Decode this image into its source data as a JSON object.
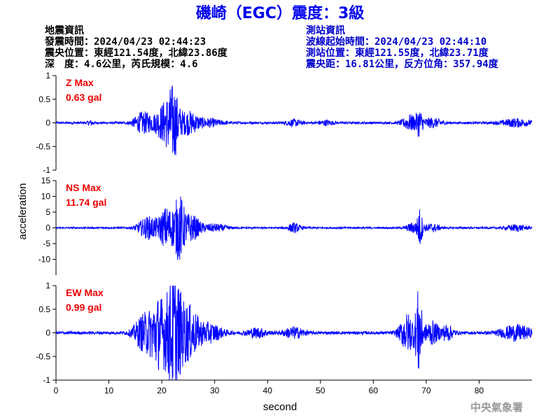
{
  "header": {
    "title": "磯崎（EGC）震度：3級"
  },
  "quake_info": {
    "heading": "地震資訊",
    "time": "發震時間：2024/04/23 02:44:23",
    "epicenter": "震央位置：東經121.54度，北緯23.86度",
    "depth_magnitude": "深　度：4.6公里，芮氏規模：4.6"
  },
  "station_info": {
    "heading": "測站資訊",
    "wave_start": "波線起始時間：2024/04/23 02:44:10",
    "location": "測站位置：東經121.55度，北緯23.71度",
    "distance": "震央距：16.81公里，反方位角：357.94度"
  },
  "footer": {
    "credit": "中央氣象署"
  },
  "chart_data": {
    "type": "line",
    "xlabel": "second",
    "ylabel": "acceleration",
    "xlim": [
      0,
      90
    ],
    "x_ticks": [
      "0",
      "10",
      "20",
      "30",
      "40",
      "50",
      "60",
      "70",
      "80"
    ],
    "grid": false,
    "trace_color": "#0000ff",
    "label_color": "#ee0000",
    "panels": [
      {
        "component": "Z",
        "max_label": "Z Max",
        "max_value": "0.63 gal",
        "ylim": [
          -1,
          1
        ],
        "y_ticks": [
          "1",
          "0.5",
          "0",
          "-0.5",
          "-1"
        ],
        "noise": 0.015,
        "bursts": [
          {
            "t": 6.5,
            "amp": 0.03,
            "width": 0.6
          },
          {
            "t": 16.5,
            "amp": 0.14,
            "width": 1.8
          },
          {
            "t": 20.5,
            "amp": 0.25,
            "width": 1.8
          },
          {
            "t": 22.2,
            "amp": 0.38,
            "width": 1.1
          },
          {
            "t": 25.0,
            "amp": 0.15,
            "width": 2.0
          },
          {
            "t": 29.0,
            "amp": 0.05,
            "width": 2.5
          },
          {
            "t": 45.0,
            "amp": 0.04,
            "width": 1.5
          },
          {
            "t": 51.0,
            "amp": 0.03,
            "width": 1.5
          },
          {
            "t": 67.0,
            "amp": 0.1,
            "width": 1.5
          },
          {
            "t": 68.7,
            "amp": 0.14,
            "width": 0.6
          },
          {
            "t": 71.0,
            "amp": 0.06,
            "width": 2.0
          },
          {
            "t": 87.0,
            "amp": 0.05,
            "width": 3.0
          }
        ]
      },
      {
        "component": "NS",
        "max_label": "NS Max",
        "max_value": "11.74 gal",
        "ylim": [
          -15,
          15
        ],
        "y_ticks": [
          "15",
          "10",
          "5",
          "0",
          "-5",
          "-10"
        ],
        "noise": 0.18,
        "bursts": [
          {
            "t": 17.5,
            "amp": 2.2,
            "width": 2.0
          },
          {
            "t": 21.0,
            "amp": 4.0,
            "width": 1.5
          },
          {
            "t": 23.3,
            "amp": 5.8,
            "width": 1.0
          },
          {
            "t": 25.5,
            "amp": 2.6,
            "width": 1.8
          },
          {
            "t": 30.0,
            "amp": 0.7,
            "width": 2.5
          },
          {
            "t": 45.0,
            "amp": 0.9,
            "width": 1.2
          },
          {
            "t": 67.5,
            "amp": 1.0,
            "width": 1.2
          },
          {
            "t": 68.8,
            "amp": 3.5,
            "width": 0.5
          },
          {
            "t": 71.0,
            "amp": 0.8,
            "width": 1.5
          },
          {
            "t": 87.0,
            "amp": 0.6,
            "width": 2.0
          }
        ]
      },
      {
        "component": "EW",
        "max_label": "EW Max",
        "max_value": "0.99 gal",
        "ylim": [
          -1,
          1
        ],
        "y_ticks": [
          "1",
          "0.5",
          "0",
          "-0.5",
          "-1"
        ],
        "noise": 0.02,
        "bursts": [
          {
            "t": 16.5,
            "amp": 0.22,
            "width": 1.8
          },
          {
            "t": 19.5,
            "amp": 0.45,
            "width": 1.8
          },
          {
            "t": 22.3,
            "amp": 0.75,
            "width": 1.4
          },
          {
            "t": 25.0,
            "amp": 0.35,
            "width": 2.0
          },
          {
            "t": 29.0,
            "amp": 0.12,
            "width": 2.5
          },
          {
            "t": 38.0,
            "amp": 0.06,
            "width": 2.0
          },
          {
            "t": 45.0,
            "amp": 0.07,
            "width": 2.0
          },
          {
            "t": 66.5,
            "amp": 0.25,
            "width": 1.5
          },
          {
            "t": 68.6,
            "amp": 0.55,
            "width": 0.6
          },
          {
            "t": 71.0,
            "amp": 0.15,
            "width": 1.5
          },
          {
            "t": 74.0,
            "amp": 0.1,
            "width": 1.2
          },
          {
            "t": 87.0,
            "amp": 0.1,
            "width": 3.0
          }
        ]
      }
    ]
  }
}
